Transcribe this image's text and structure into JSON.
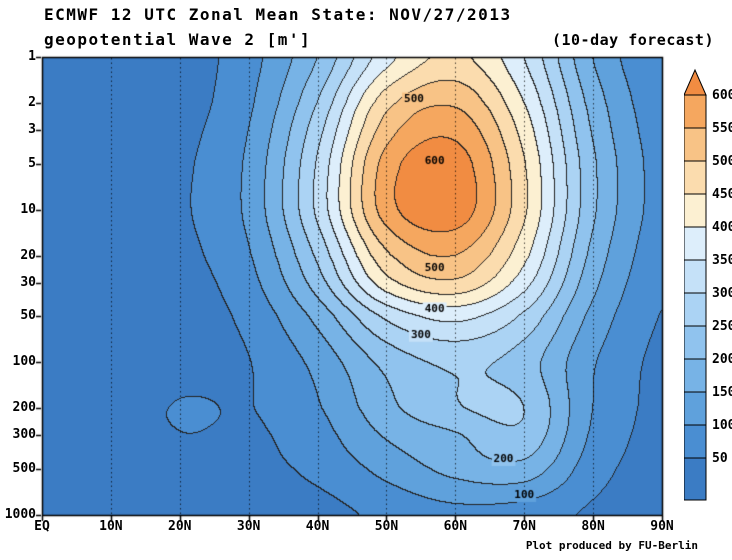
{
  "header": {
    "title": "ECMWF 12 UTC Zonal Mean State: NOV/27/2013",
    "subtitle_left": "geopotential Wave 2 [m']",
    "subtitle_right": "(10-day forecast)"
  },
  "footer": {
    "credit": "Plot produced by FU-Berlin"
  },
  "chart_data": {
    "type": "heatmap",
    "title": "ECMWF 12 UTC Zonal Mean State: NOV/27/2013",
    "field": "geopotential Wave 2",
    "units": "m'",
    "forecast": "10-day forecast",
    "x_axis": {
      "tick_labels": [
        "EQ",
        "10N",
        "20N",
        "30N",
        "40N",
        "50N",
        "60N",
        "70N",
        "80N",
        "90N"
      ],
      "tick_lats": [
        0,
        10,
        20,
        30,
        40,
        50,
        60,
        70,
        80,
        90
      ],
      "range_deg": [
        0,
        90
      ]
    },
    "y_axis": {
      "tick_labels": [
        "1",
        "2",
        "3",
        "5",
        "10",
        "20",
        "30",
        "50",
        "100",
        "200",
        "300",
        "500",
        "1000"
      ],
      "tick_pressures": [
        1,
        2,
        3,
        5,
        10,
        20,
        30,
        50,
        100,
        200,
        300,
        500,
        1000
      ],
      "scale": "log",
      "range_hpa": [
        1,
        1000
      ]
    },
    "contour_interval": 50,
    "contour_min": 50,
    "contour_max": 600,
    "grid": {
      "lats": [
        0,
        10,
        20,
        30,
        40,
        50,
        60,
        70,
        80,
        90
      ],
      "levels_hpa": [
        1,
        2,
        3,
        5,
        10,
        20,
        30,
        50,
        100,
        200,
        300,
        500,
        1000
      ],
      "values": [
        [
          2,
          8,
          25,
          80,
          200,
          380,
          460,
          350,
          150,
          55
        ],
        [
          2,
          10,
          30,
          90,
          250,
          480,
          540,
          400,
          180,
          65
        ],
        [
          2,
          12,
          35,
          100,
          280,
          525,
          585,
          430,
          195,
          72
        ],
        [
          2,
          14,
          40,
          110,
          305,
          570,
          625,
          455,
          210,
          78
        ],
        [
          2,
          14,
          42,
          112,
          310,
          575,
          630,
          460,
          210,
          78
        ],
        [
          2,
          12,
          36,
          95,
          260,
          490,
          550,
          415,
          185,
          68
        ],
        [
          2,
          10,
          30,
          82,
          225,
          430,
          490,
          370,
          165,
          60
        ],
        [
          2,
          8,
          24,
          64,
          165,
          310,
          365,
          290,
          135,
          48
        ],
        [
          2,
          6,
          20,
          48,
          115,
          215,
          260,
          225,
          105,
          38
        ],
        [
          2,
          6,
          55,
          48,
          95,
          185,
          245,
          250,
          100,
          36
        ],
        [
          2,
          5,
          48,
          42,
          80,
          155,
          195,
          235,
          92,
          32
        ],
        [
          2,
          5,
          32,
          35,
          62,
          115,
          165,
          180,
          72,
          26
        ],
        [
          2,
          3,
          12,
          18,
          32,
          62,
          85,
          75,
          42,
          16
        ]
      ]
    },
    "contour_labels": [
      {
        "text": "500",
        "lat": 54,
        "p": 1.9
      },
      {
        "text": "600",
        "lat": 57,
        "p": 4.8
      },
      {
        "text": "500",
        "lat": 57,
        "p": 24
      },
      {
        "text": "400",
        "lat": 57,
        "p": 45
      },
      {
        "text": "300",
        "lat": 55,
        "p": 66
      },
      {
        "text": "200",
        "lat": 67,
        "p": 430
      },
      {
        "text": "100",
        "lat": 70,
        "p": 740
      }
    ],
    "colorbar": {
      "tick_labels": [
        "600",
        "550",
        "500",
        "450",
        "400",
        "350",
        "300",
        "250",
        "200",
        "150",
        "100",
        "50"
      ],
      "palette": [
        "#3b7cc4",
        "#4a8ed2",
        "#5fa1dc",
        "#77b3e6",
        "#90c3ee",
        "#abd3f4",
        "#c5e1f8",
        "#ddeefb",
        "#fcf0d2",
        "#fbdcae",
        "#f8c386",
        "#f5a75f",
        "#f18c42"
      ]
    }
  }
}
